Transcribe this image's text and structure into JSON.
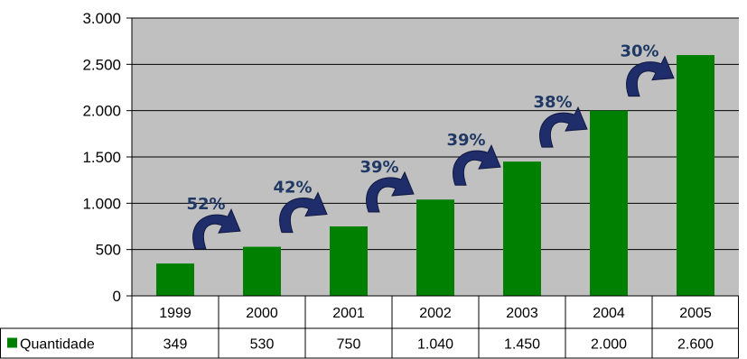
{
  "chart_data": {
    "type": "bar",
    "categories": [
      "1999",
      "2000",
      "2001",
      "2002",
      "2003",
      "2004",
      "2005"
    ],
    "series": [
      {
        "name": "Quantidade",
        "values": [
          349,
          530,
          750,
          1040,
          1450,
          2000,
          2600
        ],
        "value_labels": [
          "349",
          "530",
          "750",
          "1.040",
          "1.450",
          "2.000",
          "2.600"
        ],
        "color": "#008000"
      }
    ],
    "ylim": [
      0,
      3000
    ],
    "yticks": [
      0,
      500,
      1000,
      1500,
      2000,
      2500,
      3000
    ],
    "ytick_labels": [
      "0",
      "500",
      "1.000",
      "1.500",
      "2.000",
      "2.500",
      "3.000"
    ],
    "growth_labels": [
      "52%",
      "42%",
      "39%",
      "39%",
      "38%",
      "30%"
    ],
    "plot_background": "#c0c0c0",
    "arrow_color": "#1f2d6b",
    "grid": true,
    "data_table": true,
    "title": "",
    "xlabel": "",
    "ylabel": ""
  }
}
